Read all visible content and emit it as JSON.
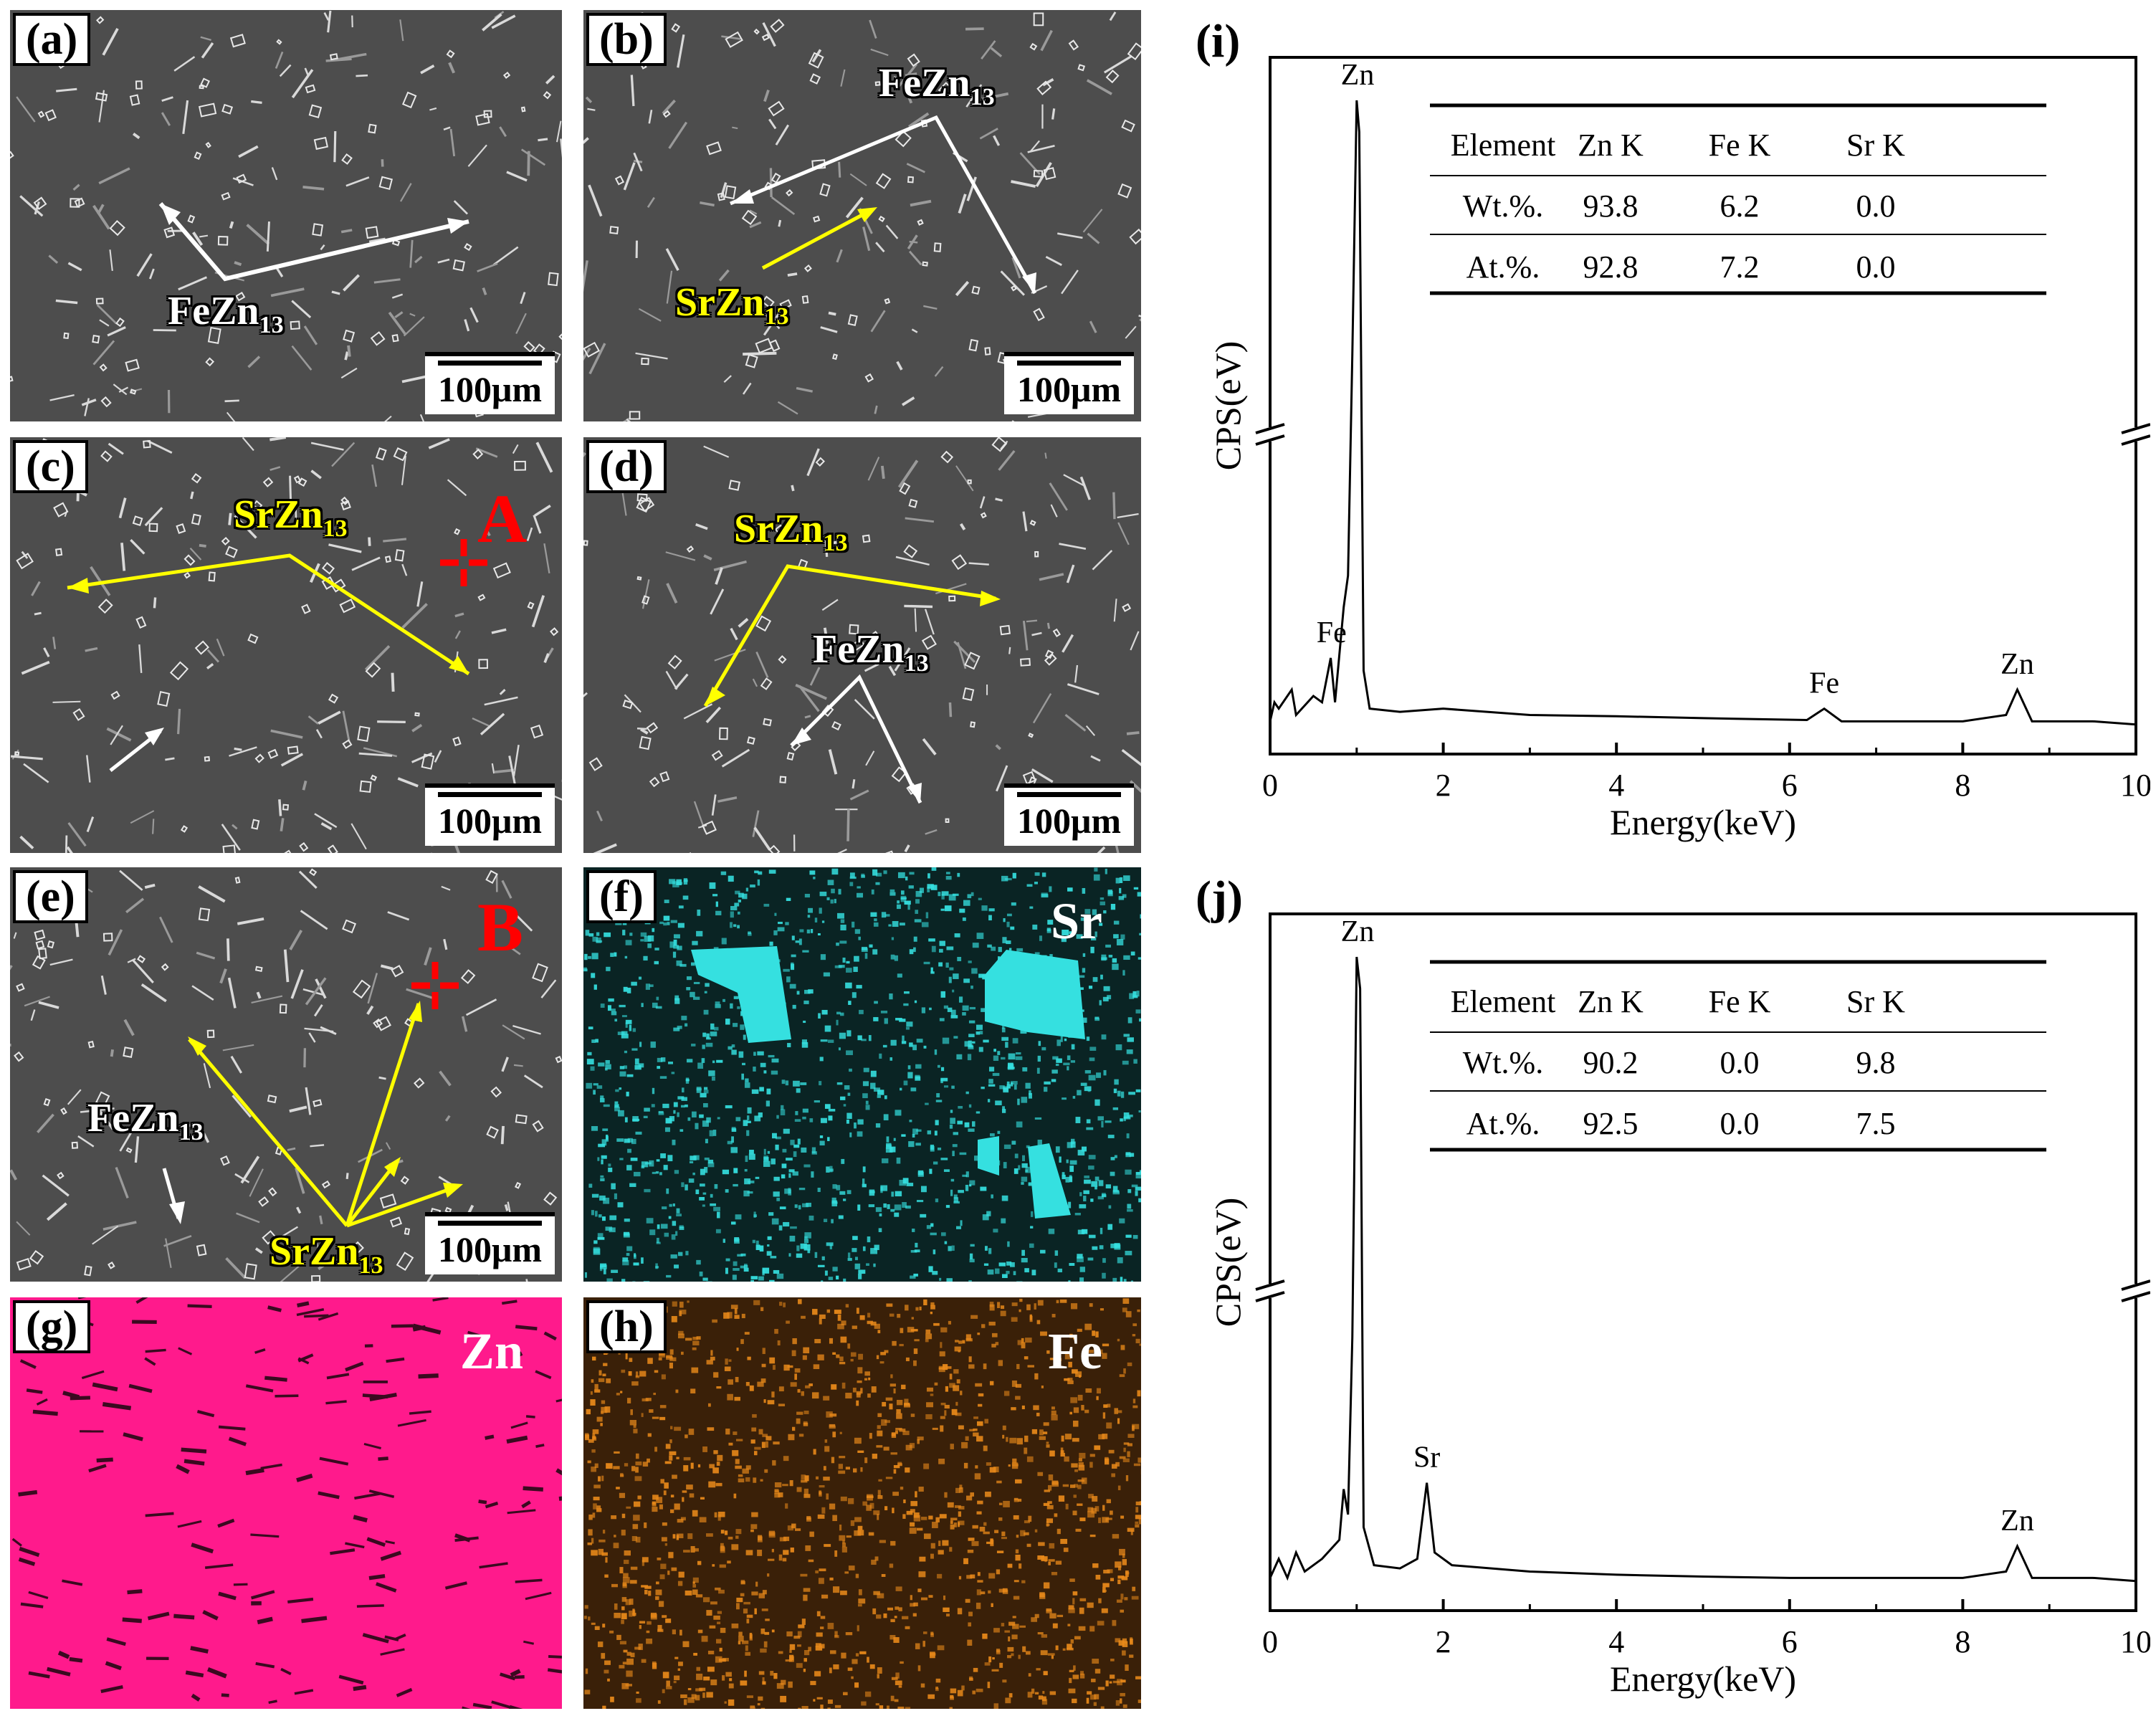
{
  "panels": {
    "a": {
      "label": "(a)",
      "scale": "100μm",
      "annotations": [
        {
          "text": "FeZn",
          "sub": "13",
          "color": "white"
        }
      ]
    },
    "b": {
      "label": "(b)",
      "scale": "100μm",
      "annotations": [
        {
          "text": "FeZn",
          "sub": "13",
          "color": "white"
        },
        {
          "text": "SrZn",
          "sub": "13",
          "color": "yellow"
        }
      ]
    },
    "c": {
      "label": "(c)",
      "scale": "100μm",
      "point": "A",
      "annotations": [
        {
          "text": "SrZn",
          "sub": "13",
          "color": "yellow"
        }
      ]
    },
    "d": {
      "label": "(d)",
      "scale": "100μm",
      "annotations": [
        {
          "text": "SrZn",
          "sub": "13",
          "color": "yellow"
        },
        {
          "text": "FeZn",
          "sub": "13",
          "color": "white"
        }
      ]
    },
    "e": {
      "label": "(e)",
      "scale": "100μm",
      "point": "B",
      "annotations": [
        {
          "text": "FeZn",
          "sub": "13",
          "color": "white"
        },
        {
          "text": "SrZn",
          "sub": "13",
          "color": "yellow"
        }
      ]
    },
    "f": {
      "label": "(f)",
      "element": "Sr",
      "color": "#35e0e0"
    },
    "g": {
      "label": "(g)",
      "element": "Zn",
      "color": "#ff1a8c"
    },
    "h": {
      "label": "(h)",
      "element": "Fe",
      "color": "#e8891a"
    }
  },
  "chart_data": [
    {
      "id": "i",
      "label": "(i)",
      "type": "line",
      "xlabel": "Energy(keV)",
      "ylabel": "CPS(eV)",
      "xlim": [
        0,
        10
      ],
      "xticks": [
        0,
        2,
        4,
        6,
        8,
        10
      ],
      "peaks": [
        {
          "name": "Zn",
          "x": 1.01
        },
        {
          "name": "Fe",
          "x": 0.71
        },
        {
          "name": "Fe",
          "x": 6.4
        },
        {
          "name": "Zn",
          "x": 8.63
        }
      ],
      "spectrum": [
        [
          0,
          0.02
        ],
        [
          0.05,
          0.05
        ],
        [
          0.1,
          0.04
        ],
        [
          0.25,
          0.07
        ],
        [
          0.3,
          0.03
        ],
        [
          0.5,
          0.06
        ],
        [
          0.6,
          0.05
        ],
        [
          0.7,
          0.12
        ],
        [
          0.75,
          0.05
        ],
        [
          0.85,
          0.2
        ],
        [
          0.9,
          0.25
        ],
        [
          0.95,
          0.6
        ],
        [
          1.0,
          1.0
        ],
        [
          1.03,
          0.95
        ],
        [
          1.08,
          0.1
        ],
        [
          1.15,
          0.04
        ],
        [
          1.5,
          0.035
        ],
        [
          2.0,
          0.04
        ],
        [
          3,
          0.03
        ],
        [
          4,
          0.028
        ],
        [
          5,
          0.025
        ],
        [
          6.2,
          0.022
        ],
        [
          6.4,
          0.04
        ],
        [
          6.6,
          0.02
        ],
        [
          8,
          0.02
        ],
        [
          8.5,
          0.03
        ],
        [
          8.63,
          0.07
        ],
        [
          8.8,
          0.02
        ],
        [
          9.5,
          0.02
        ],
        [
          10,
          0.015
        ]
      ],
      "table": {
        "headers": [
          "Element",
          "Zn K",
          "Fe K",
          "Sr K"
        ],
        "rows": [
          [
            "Wt.%.",
            "93.8",
            "6.2",
            "0.0"
          ],
          [
            "At.%.",
            "92.8",
            "7.2",
            "0.0"
          ]
        ]
      }
    },
    {
      "id": "j",
      "label": "(j)",
      "type": "line",
      "xlabel": "Energy(keV)",
      "ylabel": "CPS(eV)",
      "xlim": [
        0,
        10
      ],
      "xticks": [
        0,
        2,
        4,
        6,
        8,
        10
      ],
      "peaks": [
        {
          "name": "Zn",
          "x": 1.01
        },
        {
          "name": "Sr",
          "x": 1.81
        },
        {
          "name": "Zn",
          "x": 8.63
        }
      ],
      "spectrum": [
        [
          0,
          0.02
        ],
        [
          0.1,
          0.05
        ],
        [
          0.2,
          0.02
        ],
        [
          0.3,
          0.06
        ],
        [
          0.4,
          0.03
        ],
        [
          0.6,
          0.05
        ],
        [
          0.8,
          0.08
        ],
        [
          0.85,
          0.16
        ],
        [
          0.9,
          0.12
        ],
        [
          0.95,
          0.4
        ],
        [
          1.0,
          1.0
        ],
        [
          1.04,
          0.95
        ],
        [
          1.08,
          0.1
        ],
        [
          1.2,
          0.04
        ],
        [
          1.5,
          0.035
        ],
        [
          1.7,
          0.05
        ],
        [
          1.81,
          0.17
        ],
        [
          1.9,
          0.06
        ],
        [
          2.1,
          0.04
        ],
        [
          3,
          0.03
        ],
        [
          4,
          0.025
        ],
        [
          5,
          0.022
        ],
        [
          6,
          0.02
        ],
        [
          7,
          0.02
        ],
        [
          8,
          0.02
        ],
        [
          8.5,
          0.03
        ],
        [
          8.63,
          0.07
        ],
        [
          8.8,
          0.02
        ],
        [
          9.5,
          0.02
        ],
        [
          10,
          0.015
        ]
      ],
      "table": {
        "headers": [
          "Element",
          "Zn K",
          "Fe K",
          "Sr K"
        ],
        "rows": [
          [
            "Wt.%.",
            "90.2",
            "0.0",
            "9.8"
          ],
          [
            "At.%.",
            "92.5",
            "0.0",
            "7.5"
          ]
        ]
      }
    }
  ]
}
